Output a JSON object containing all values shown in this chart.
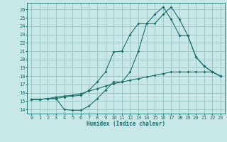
{
  "xlabel": "Humidex (Indice chaleur)",
  "background_color": "#c8e8e8",
  "grid_color": "#a0c8c8",
  "line_color": "#1a6e6e",
  "xlim": [
    -0.5,
    23.5
  ],
  "ylim": [
    13.5,
    26.8
  ],
  "xticks": [
    0,
    1,
    2,
    3,
    4,
    5,
    6,
    7,
    8,
    9,
    10,
    11,
    12,
    13,
    14,
    15,
    16,
    17,
    18,
    19,
    20,
    21,
    22,
    23
  ],
  "yticks": [
    14,
    15,
    16,
    17,
    18,
    19,
    20,
    21,
    22,
    23,
    24,
    25,
    26
  ],
  "line1_x": [
    0,
    1,
    2,
    3,
    4,
    5,
    6,
    7,
    8,
    9,
    10,
    11,
    12,
    13,
    14,
    15,
    16,
    17,
    18,
    19,
    20,
    21,
    22,
    23
  ],
  "line1_y": [
    15.2,
    15.2,
    15.3,
    15.3,
    14.0,
    13.9,
    13.9,
    14.4,
    15.3,
    16.3,
    17.3,
    17.3,
    18.5,
    21.0,
    24.3,
    24.3,
    25.4,
    26.3,
    24.8,
    22.9,
    20.3,
    19.2,
    18.5,
    18.0
  ],
  "line2_x": [
    0,
    1,
    2,
    3,
    4,
    5,
    6,
    7,
    8,
    9,
    10,
    11,
    12,
    13,
    14,
    15,
    16,
    17,
    18,
    19,
    20,
    21,
    22,
    23
  ],
  "line2_y": [
    15.2,
    15.2,
    15.3,
    15.3,
    15.5,
    15.6,
    15.7,
    16.3,
    17.3,
    18.5,
    20.9,
    21.0,
    23.0,
    24.3,
    24.3,
    25.4,
    26.3,
    24.8,
    22.9,
    22.9,
    20.3,
    19.2,
    18.5,
    18.0
  ],
  "line3_x": [
    0,
    1,
    2,
    3,
    4,
    5,
    6,
    7,
    8,
    9,
    10,
    11,
    12,
    13,
    14,
    15,
    16,
    17,
    18,
    19,
    20,
    21,
    22,
    23
  ],
  "line3_y": [
    15.2,
    15.2,
    15.3,
    15.5,
    15.6,
    15.7,
    15.9,
    16.2,
    16.5,
    16.8,
    17.1,
    17.3,
    17.5,
    17.7,
    17.9,
    18.1,
    18.3,
    18.5,
    18.5,
    18.5,
    18.5,
    18.5,
    18.5,
    18.0
  ]
}
